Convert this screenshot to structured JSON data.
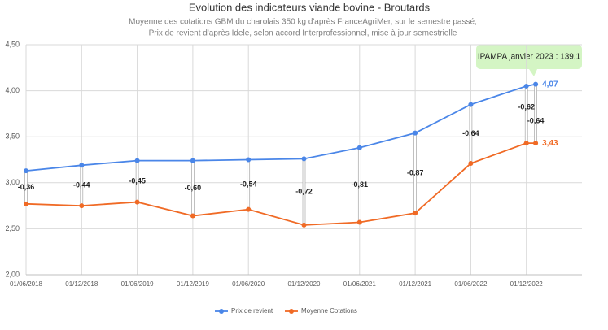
{
  "chart_data": {
    "type": "line",
    "title": "Evolution des indicateurs viande bovine - Broutards",
    "subtitle": [
      "Moyenne des cotations GBM du charolais 350 kg d'après FranceAgriMer, sur le semestre passé;",
      "Prix de revient d'après Idele, selon accord Interprofessionnel, mise à jour semestrielle"
    ],
    "x": [
      0,
      6,
      12,
      18,
      24,
      30,
      36,
      42,
      48,
      54,
      55
    ],
    "xlim": [
      0,
      60
    ],
    "xticks": [
      {
        "value": 0,
        "label": "01/06/2018"
      },
      {
        "value": 6,
        "label": "01/12/2018"
      },
      {
        "value": 12,
        "label": "01/06/2019"
      },
      {
        "value": 18,
        "label": "01/12/2019"
      },
      {
        "value": 24,
        "label": "01/06/2020"
      },
      {
        "value": 30,
        "label": "01/12/2020"
      },
      {
        "value": 36,
        "label": "01/06/2021"
      },
      {
        "value": 42,
        "label": "01/12/2021"
      },
      {
        "value": 48,
        "label": "01/06/2022"
      },
      {
        "value": 54,
        "label": "01/12/2022"
      }
    ],
    "ylim": [
      2,
      4.5
    ],
    "yticks": [
      {
        "value": 2,
        "label": "2,00"
      },
      {
        "value": 2.5,
        "label": "2,50"
      },
      {
        "value": 3,
        "label": "3,00"
      },
      {
        "value": 3.5,
        "label": "3,50"
      },
      {
        "value": 4,
        "label": "4,00"
      },
      {
        "value": 4.5,
        "label": "4,50"
      }
    ],
    "grid": true,
    "legend": "bottom",
    "series": [
      {
        "name": "Prix de revient",
        "color": "#4a86e8",
        "values": [
          3.13,
          3.19,
          3.24,
          3.24,
          3.25,
          3.26,
          3.38,
          3.54,
          3.85,
          4.05,
          4.07
        ],
        "end_label": "4,07"
      },
      {
        "name": "Moyenne Cotations",
        "color": "#f06a25",
        "values": [
          2.77,
          2.75,
          2.79,
          2.64,
          2.71,
          2.54,
          2.57,
          2.67,
          3.21,
          3.43,
          3.43
        ],
        "end_label": "3,43"
      }
    ],
    "gaps": {
      "values": [
        -0.36,
        -0.44,
        -0.45,
        -0.6,
        -0.54,
        -0.72,
        -0.81,
        -0.87,
        -0.64,
        -0.62,
        -0.64
      ],
      "value_labels": [
        "-0,36",
        "-0,44",
        "-0,45",
        "-0,60",
        "-0,54",
        "-0,72",
        "-0,81",
        "-0,87",
        "-0,64",
        "-0,62",
        "-0,64"
      ]
    },
    "annotation": "IPAMPA janvier 2023 : 139.1"
  }
}
